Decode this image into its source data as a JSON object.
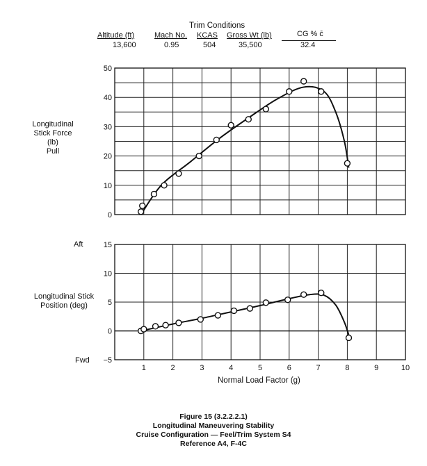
{
  "trim": {
    "title": "Trim Conditions",
    "headers": [
      "Altitude (ft)",
      "Mach No.",
      "KCAS",
      "Gross Wt (lb)",
      "CG % c̄"
    ],
    "values": [
      "13,600",
      "0.95",
      "504",
      "35,500",
      "32.4"
    ]
  },
  "top_ylabel": [
    "Longitudinal",
    "Stick Force",
    "(lb)",
    "Pull"
  ],
  "bottom_ylabel": [
    "Longitudinal Stick",
    "Position (deg)"
  ],
  "aft_label": "Aft",
  "fwd_label": "Fwd",
  "xlabel": "Normal Load Factor (g)",
  "caption": [
    "Figure 15 (3.2.2.2.1)",
    "Longitudinal Maneuvering Stability",
    "Cruise Configuration — Feel/Trim System S4",
    "Reference A4, F-4C"
  ],
  "chart_data": [
    {
      "type": "scatter",
      "xlabel": "Normal Load Factor (g)",
      "ylabel": "Longitudinal Stick Force (lb) Pull",
      "xlim": [
        0,
        10
      ],
      "ylim": [
        0,
        50
      ],
      "yticks": [
        0,
        10,
        20,
        30,
        40,
        50
      ],
      "grid": true,
      "points": [
        [
          0.9,
          1
        ],
        [
          0.95,
          3
        ],
        [
          1.35,
          7
        ],
        [
          1.7,
          10
        ],
        [
          2.2,
          14
        ],
        [
          2.9,
          20
        ],
        [
          3.5,
          25.5
        ],
        [
          4.0,
          30.5
        ],
        [
          4.6,
          32.5
        ],
        [
          5.2,
          36
        ],
        [
          6.0,
          42
        ],
        [
          6.5,
          45.5
        ],
        [
          7.1,
          42
        ],
        [
          8.0,
          17.5
        ]
      ],
      "fair_curve": [
        [
          0.9,
          0
        ],
        [
          1.6,
          10
        ],
        [
          2.6,
          18
        ],
        [
          3.6,
          26
        ],
        [
          4.6,
          33
        ],
        [
          5.6,
          39.5
        ],
        [
          6.5,
          43.5
        ],
        [
          7.2,
          42
        ],
        [
          7.6,
          35
        ],
        [
          7.9,
          25
        ],
        [
          8.05,
          16
        ]
      ]
    },
    {
      "type": "scatter",
      "xlabel": "Normal Load Factor (g)",
      "ylabel": "Longitudinal Stick Position (deg)",
      "xlim": [
        0,
        10
      ],
      "ylim": [
        -5,
        15
      ],
      "xticks": [
        1,
        2,
        3,
        4,
        5,
        6,
        7,
        8,
        9,
        10
      ],
      "yticks": [
        -5,
        0,
        5,
        10,
        15
      ],
      "grid": true,
      "points": [
        [
          0.9,
          0
        ],
        [
          1.0,
          0.3
        ],
        [
          1.4,
          0.8
        ],
        [
          1.75,
          1
        ],
        [
          2.2,
          1.4
        ],
        [
          2.95,
          2
        ],
        [
          3.55,
          2.7
        ],
        [
          4.1,
          3.5
        ],
        [
          4.65,
          3.9
        ],
        [
          5.2,
          4.9
        ],
        [
          5.95,
          5.4
        ],
        [
          6.5,
          6.3
        ],
        [
          7.1,
          6.6
        ],
        [
          8.05,
          -1.2
        ]
      ],
      "fair_curve": [
        [
          0.9,
          0
        ],
        [
          2.0,
          1.2
        ],
        [
          3.0,
          2.2
        ],
        [
          4.0,
          3.3
        ],
        [
          5.0,
          4.4
        ],
        [
          6.0,
          5.6
        ],
        [
          6.7,
          6.3
        ],
        [
          7.2,
          6.2
        ],
        [
          7.6,
          4.5
        ],
        [
          7.9,
          1.5
        ],
        [
          8.1,
          -1.5
        ]
      ]
    }
  ]
}
